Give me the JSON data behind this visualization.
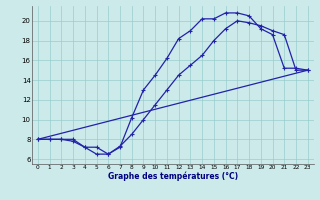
{
  "xlabel": "Graphe des températures (°C)",
  "bg_color": "#cceaea",
  "line_color": "#2222aa",
  "grid_color": "#99cccc",
  "xlim": [
    -0.5,
    23.5
  ],
  "ylim": [
    5.5,
    21.5
  ],
  "yticks": [
    6,
    8,
    10,
    12,
    14,
    16,
    18,
    20
  ],
  "xticks": [
    0,
    1,
    2,
    3,
    4,
    5,
    6,
    7,
    8,
    9,
    10,
    11,
    12,
    13,
    14,
    15,
    16,
    17,
    18,
    19,
    20,
    21,
    22,
    23
  ],
  "line1_x": [
    0,
    1,
    2,
    3,
    4,
    5,
    6,
    7,
    8,
    9,
    10,
    11,
    12,
    13,
    14,
    15,
    16,
    17,
    18,
    19,
    20,
    21,
    22,
    23
  ],
  "line1_y": [
    8.0,
    8.0,
    8.0,
    7.8,
    7.2,
    6.5,
    6.5,
    7.2,
    10.2,
    13.0,
    14.5,
    16.2,
    18.2,
    19.0,
    20.2,
    20.2,
    20.8,
    20.8,
    20.5,
    19.2,
    18.6,
    15.2,
    15.2,
    15.0
  ],
  "line2_x": [
    0,
    1,
    2,
    3,
    4,
    5,
    6,
    7,
    8,
    9,
    10,
    11,
    12,
    13,
    14,
    15,
    16,
    17,
    18,
    19,
    20,
    21,
    22,
    23
  ],
  "line2_y": [
    8.0,
    8.0,
    8.0,
    8.0,
    7.2,
    7.2,
    6.5,
    7.3,
    8.5,
    10.0,
    11.5,
    13.0,
    14.5,
    15.5,
    16.5,
    18.0,
    19.2,
    20.0,
    19.8,
    19.5,
    19.0,
    18.6,
    15.0,
    15.0
  ],
  "line3_x": [
    0,
    23
  ],
  "line3_y": [
    8.0,
    15.0
  ],
  "marker_size": 3.0,
  "linewidth": 0.9
}
